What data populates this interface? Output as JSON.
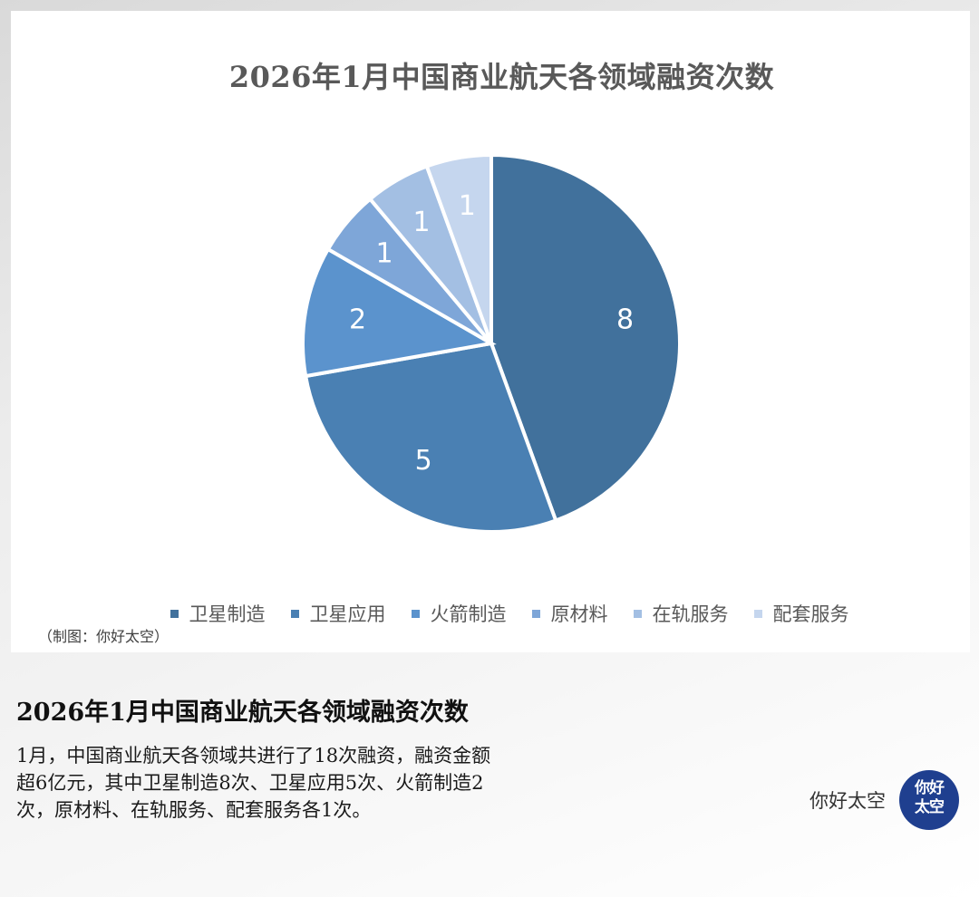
{
  "chart_data": {
    "type": "pie",
    "title": "2026年1月中国商业航天各领域融资次数",
    "categories": [
      "卫星制造",
      "卫星应用",
      "火箭制造",
      "原材料",
      "在轨服务",
      "配套服务"
    ],
    "values": [
      8,
      5,
      2,
      1,
      1,
      1
    ],
    "colors": [
      "#41719c",
      "#4a80b3",
      "#5b93cd",
      "#7ea6d8",
      "#a3bfe3",
      "#c5d6ee"
    ],
    "legend_position": "bottom"
  },
  "credit": "（制图：你好太空）",
  "caption": {
    "title": "2026年1月中国商业航天各领域融资次数",
    "body": "1月，中国商业航天各领域共进行了18次融资，融资金额超6亿元，其中卫星制造8次、卫星应用5次、火箭制造2次，原材料、在轨服务、配套服务各1次。"
  },
  "brand": {
    "name": "你好太空",
    "logo_text": "你好太空"
  }
}
